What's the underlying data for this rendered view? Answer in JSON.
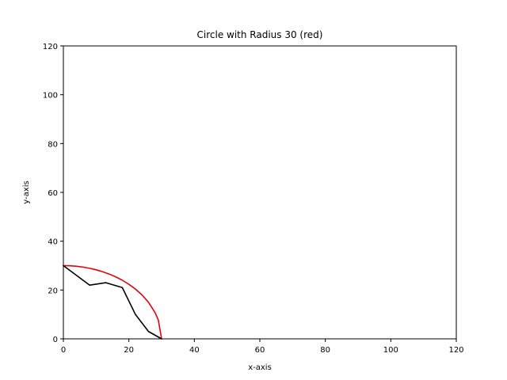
{
  "chart_data": {
    "type": "line",
    "title": "Circle with Radius 30 (red)",
    "xlabel": "x-axis",
    "ylabel": "y-axis",
    "xlim": [
      0,
      120
    ],
    "ylim": [
      0,
      120
    ],
    "xticks": [
      0,
      20,
      40,
      60,
      80,
      100,
      120
    ],
    "yticks": [
      0,
      20,
      40,
      60,
      80,
      100,
      120
    ],
    "grid": false,
    "series": [
      {
        "color": "#e8000b",
        "style": "line",
        "points": [
          [
            0,
            30
          ],
          [
            2,
            29.93
          ],
          [
            4,
            29.73
          ],
          [
            6,
            29.39
          ],
          [
            8,
            28.91
          ],
          [
            10,
            28.28
          ],
          [
            12,
            27.5
          ],
          [
            14,
            26.53
          ],
          [
            16,
            25.38
          ],
          [
            18,
            24
          ],
          [
            20,
            22.36
          ],
          [
            22,
            20.4
          ],
          [
            24,
            18
          ],
          [
            26,
            14.97
          ],
          [
            28,
            10.77
          ],
          [
            29,
            7.68
          ],
          [
            30,
            0
          ]
        ]
      },
      {
        "color": "#000000",
        "style": "line",
        "points": [
          [
            0,
            30
          ],
          [
            8,
            22
          ],
          [
            13,
            23
          ],
          [
            18,
            21
          ],
          [
            22,
            10
          ],
          [
            26,
            3
          ],
          [
            30,
            0
          ]
        ]
      }
    ]
  }
}
